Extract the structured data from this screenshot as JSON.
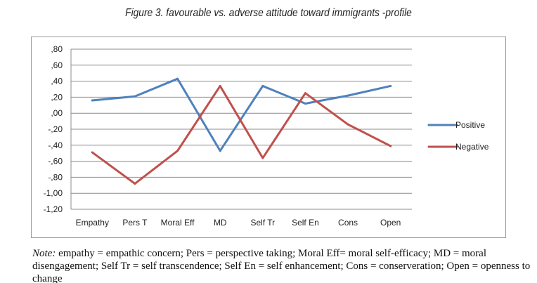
{
  "figure": {
    "title": "Figure 3. favourable vs. adverse attitude toward immigrants -profile"
  },
  "chart_data": {
    "type": "line",
    "categories": [
      "Empathy",
      "Pers T",
      "Moral Eff",
      "MD",
      "Self Tr",
      "Self En",
      "Cons",
      "Open"
    ],
    "series": [
      {
        "name": "Positive",
        "color": "#4f81bd",
        "values": [
          0.16,
          0.21,
          0.43,
          -0.47,
          0.34,
          0.12,
          0.22,
          0.34
        ]
      },
      {
        "name": "Negative",
        "color": "#c0504d",
        "values": [
          -0.49,
          -0.88,
          -0.47,
          0.34,
          -0.56,
          0.25,
          -0.14,
          -0.41
        ]
      }
    ],
    "ylim": [
      -1.2,
      0.8
    ],
    "yticks": [
      ",80",
      ",60",
      ",40",
      ",20",
      ",00",
      "-,20",
      "-,40",
      "-,60",
      "-,80",
      "-1,00",
      "-1,20"
    ],
    "ytick_values": [
      0.8,
      0.6,
      0.4,
      0.2,
      0.0,
      -0.2,
      -0.4,
      -0.6,
      -0.8,
      -1.0,
      -1.2
    ],
    "grid": true,
    "legend_position": "right"
  },
  "note": {
    "label": "Note:",
    "text": " empathy = empathic concern; Pers = perspective taking; Moral Eff= moral self-efficacy; MD = moral disengagement; Self Tr = self transcendence; Self En = self enhancement; Cons = conserveration; Open = openness to change"
  }
}
